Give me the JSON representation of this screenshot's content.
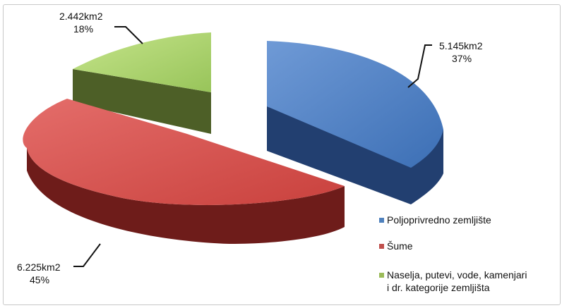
{
  "chart_data": {
    "type": "pie",
    "title": "",
    "series": [
      {
        "name": "",
        "slices": [
          {
            "label": "Poljoprivredno zemljište",
            "value": 5145,
            "value_text": "5.145km2",
            "percent_text": "37%",
            "color": "#4f81bd"
          },
          {
            "label": "Šume",
            "value": 6225,
            "value_text": "6.225km2",
            "percent_text": "45%",
            "color": "#c0504d"
          },
          {
            "label_lines": [
              "Naselja, putevi, vode, kamenjari",
              "i dr. kategorije zemljišta"
            ],
            "value": 2442,
            "value_text": "2.442km2",
            "percent_text": "18%",
            "color": "#9bbb59"
          }
        ]
      }
    ],
    "style": "3d-exploded",
    "legend_position": "right"
  }
}
